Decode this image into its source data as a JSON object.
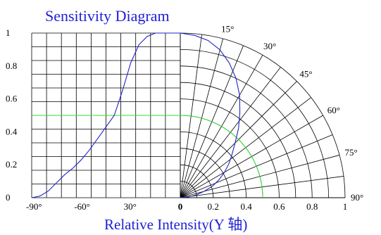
{
  "chart_data": {
    "type": "line",
    "title": "Sensitivity Diagram",
    "xlabel": "Relative Intensity(Y 轴)",
    "ylabel": "",
    "ylim": [
      0,
      1
    ],
    "y_ticks": [
      "0",
      "0.2",
      "0.4",
      "0.6",
      "0.8",
      "1"
    ],
    "left_angle_ticks": [
      "-90°",
      "-60°",
      "30°",
      "0"
    ],
    "bottom_intensity_ticks": [
      "0.2",
      "0.4",
      "0.6",
      "0.8",
      "1"
    ],
    "polar_angle_labels": [
      "15°",
      "30°",
      "45°",
      "60°",
      "75°",
      "90°"
    ],
    "grid": true,
    "colors": {
      "sensitivity_curve": "#2323c8",
      "half_level_line": "#33dd33",
      "grid": "#000000",
      "title": "#1f1fd6"
    },
    "series": [
      {
        "values_rectangular_angle_deg": [
          -90,
          -85,
          -80,
          -75,
          -70,
          -65,
          -60,
          -55,
          -50,
          -45,
          -40,
          -35,
          -30,
          -25,
          -20,
          -15,
          -10,
          -5,
          0
        ],
        "values_rectangular_intensity": [
          0.0,
          0.01,
          0.04,
          0.09,
          0.14,
          0.18,
          0.23,
          0.29,
          0.36,
          0.43,
          0.5,
          0.65,
          0.82,
          0.93,
          0.98,
          1.0,
          1.0,
          1.0,
          1.0
        ],
        "values_polar_angle_deg": [
          0,
          5,
          10,
          15,
          20,
          25,
          30,
          35,
          40,
          45,
          50,
          55,
          60,
          65,
          70,
          75,
          80,
          85,
          90
        ],
        "values_polar_intensity": [
          1.0,
          0.99,
          0.97,
          0.93,
          0.87,
          0.8,
          0.72,
          0.63,
          0.55,
          0.47,
          0.41,
          0.36,
          0.31,
          0.26,
          0.21,
          0.15,
          0.1,
          0.05,
          0.0
        ]
      }
    ],
    "half_intensity_level": 0.5
  }
}
